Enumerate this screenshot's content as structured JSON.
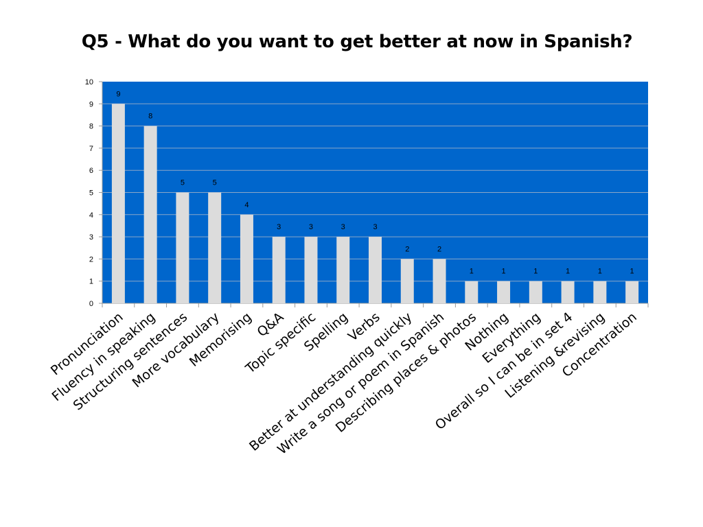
{
  "chart_data": {
    "type": "bar",
    "title": "Q5 - What do you want to get better at now in Spanish?",
    "categories": [
      "Pronunciation",
      "Fluency in speaking",
      "Structuring sentences",
      "More vocabulary",
      "Memorising",
      "Q&A",
      "Topic specific",
      "Spelling",
      "Verbs",
      "Better at understanding quickly",
      "Write a song or poem in Spanish",
      "Describing places & photos",
      "Nothing",
      "Everything",
      "Overall so I can be in set 4",
      "Listening &revising",
      "Concentration"
    ],
    "values": [
      9,
      8,
      5,
      5,
      4,
      3,
      3,
      3,
      3,
      2,
      2,
      1,
      1,
      1,
      1,
      1,
      1
    ],
    "ylim": [
      0,
      10
    ],
    "yticks": [
      0,
      1,
      2,
      3,
      4,
      5,
      6,
      7,
      8,
      9,
      10
    ],
    "grid": true,
    "legend": "none",
    "colors": {
      "plot_background": "#0066CC",
      "bar_fill": "#DCDCDC",
      "gridline": "#8AA6C8",
      "axis": "#999999"
    }
  }
}
